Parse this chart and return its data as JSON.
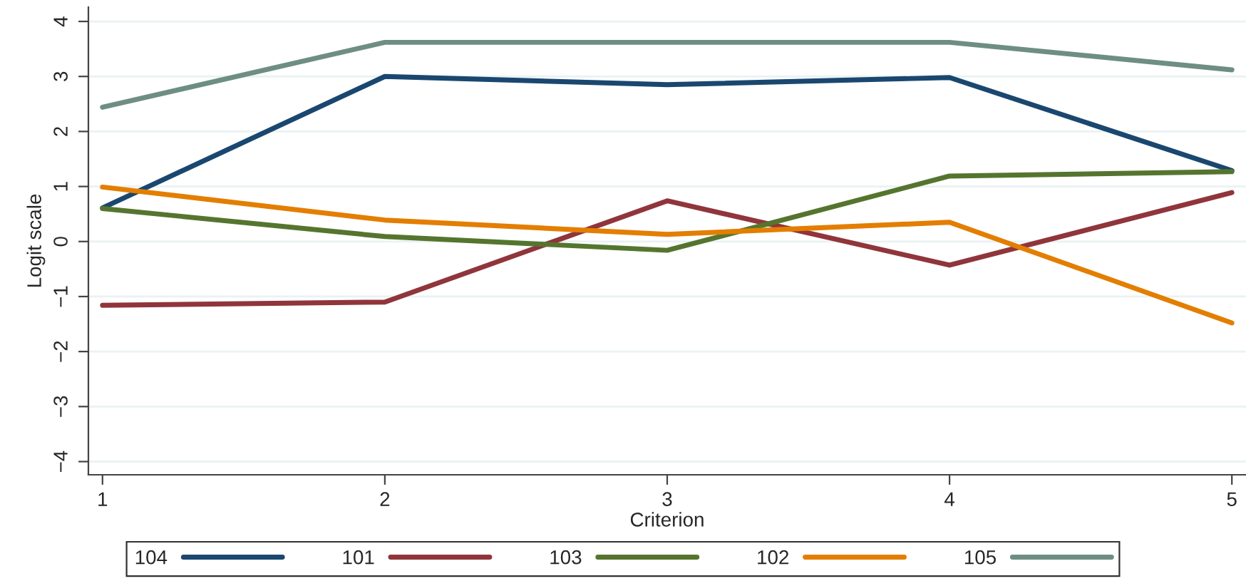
{
  "chart_data": {
    "type": "line",
    "xlabel": "Criterion",
    "ylabel": "Logit scale",
    "x": [
      1,
      2,
      3,
      4,
      5
    ],
    "series": [
      {
        "name": "104",
        "color": "#1a476f",
        "values": [
          0.61,
          3.0,
          2.85,
          2.98,
          1.29
        ]
      },
      {
        "name": "101",
        "color": "#90353b",
        "values": [
          -1.16,
          -1.1,
          0.74,
          -0.43,
          0.89
        ]
      },
      {
        "name": "103",
        "color": "#55752f",
        "values": [
          0.6,
          0.09,
          -0.16,
          1.19,
          1.27
        ]
      },
      {
        "name": "102",
        "color": "#e37e00",
        "values": [
          0.99,
          0.39,
          0.13,
          0.35,
          -1.48
        ]
      },
      {
        "name": "105",
        "color": "#6e8e84",
        "values": [
          2.44,
          3.62,
          3.62,
          3.62,
          3.12
        ]
      }
    ],
    "xlim": [
      0.95,
      5.05
    ],
    "xticks": [
      1,
      2,
      3,
      4,
      5
    ],
    "ylim": [
      -4.24,
      4.26
    ],
    "yticks": [
      {
        "value": -4,
        "label": "−4"
      },
      {
        "value": -3,
        "label": "−3"
      },
      {
        "value": -2,
        "label": "−2"
      },
      {
        "value": -1,
        "label": "−1"
      },
      0,
      1,
      2,
      3,
      4
    ],
    "grid": "y",
    "legend": "bottom",
    "marker": "none",
    "line_style": "solid"
  }
}
